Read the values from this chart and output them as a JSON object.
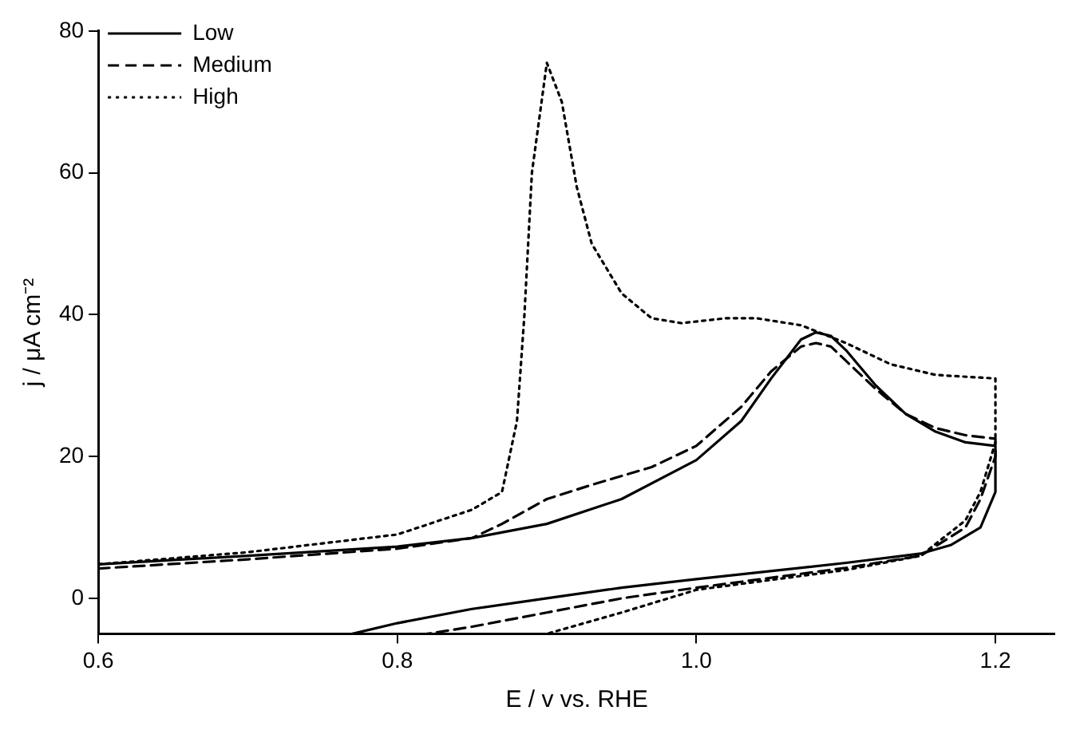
{
  "chart_data": {
    "type": "line",
    "xlabel": "E / v vs. RHE",
    "ylabel": "j / μA cm⁻²",
    "xlim": [
      0.6,
      1.24
    ],
    "ylim": [
      -5,
      80
    ],
    "xticks": [
      {
        "value": 0.6,
        "label": "0.6"
      },
      {
        "value": 0.8,
        "label": "0.8"
      },
      {
        "value": 1.0,
        "label": "1.0"
      },
      {
        "value": 1.2,
        "label": "1.2"
      }
    ],
    "yticks": [
      0,
      20,
      40,
      60,
      80
    ],
    "grid": false,
    "legend": "top left",
    "marker": "none",
    "series": [
      {
        "name": "Low",
        "color": "#000000",
        "line_style": "solid",
        "x": [
          0.6,
          0.7,
          0.8,
          0.85,
          0.9,
          0.95,
          1.0,
          1.03,
          1.05,
          1.07,
          1.08,
          1.09,
          1.1,
          1.12,
          1.14,
          1.16,
          1.18,
          1.2,
          1.2,
          1.19,
          1.17,
          1.15,
          1.1,
          1.0,
          0.95,
          0.9,
          0.85,
          0.8,
          0.77
        ],
        "values": [
          4.8,
          6,
          7.3,
          8.5,
          10.5,
          14,
          19.5,
          25,
          31,
          36.5,
          37.5,
          37,
          35,
          30,
          26,
          23.5,
          22,
          21.5,
          15,
          10,
          7.5,
          6.3,
          5,
          2.7,
          1.5,
          0,
          -1.5,
          -3.5,
          -5
        ]
      },
      {
        "name": "Medium",
        "color": "#000000",
        "line_style": "dashed",
        "x": [
          0.6,
          0.7,
          0.8,
          0.85,
          0.87,
          0.9,
          0.93,
          0.97,
          1.0,
          1.03,
          1.05,
          1.07,
          1.08,
          1.09,
          1.1,
          1.12,
          1.14,
          1.16,
          1.18,
          1.2,
          1.2,
          1.19,
          1.18,
          1.15,
          1.1,
          1.0,
          0.95,
          0.9,
          0.85,
          0.82
        ],
        "values": [
          4.2,
          5.5,
          7,
          8.5,
          10.5,
          14,
          16,
          18.5,
          21.5,
          27,
          32,
          35.5,
          36,
          35.5,
          33.5,
          29.5,
          26,
          24,
          23,
          22.5,
          20,
          14,
          10,
          6,
          4.3,
          1.5,
          0,
          -2,
          -4,
          -5
        ]
      },
      {
        "name": "High",
        "color": "#000000",
        "line_style": "dotted",
        "x": [
          0.6,
          0.7,
          0.8,
          0.85,
          0.87,
          0.88,
          0.885,
          0.89,
          0.9,
          0.91,
          0.92,
          0.93,
          0.95,
          0.97,
          0.99,
          1.02,
          1.04,
          1.07,
          1.1,
          1.13,
          1.16,
          1.2,
          1.2,
          1.19,
          1.18,
          1.15,
          1.1,
          1.0,
          0.95,
          0.9
        ],
        "values": [
          4.8,
          6.5,
          9,
          12.5,
          15,
          25,
          40,
          60,
          75.5,
          70,
          58,
          50,
          43,
          39.5,
          38.8,
          39.5,
          39.5,
          38.5,
          36,
          33,
          31.5,
          31,
          22,
          15,
          11,
          6,
          4,
          1.2,
          -2,
          -5
        ]
      }
    ]
  }
}
